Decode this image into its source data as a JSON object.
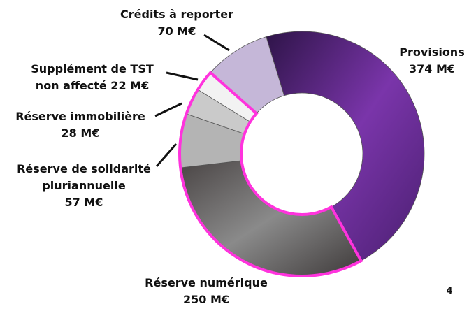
{
  "chart_data": {
    "type": "pie",
    "style": "donut",
    "unit": "M€",
    "slices": [
      {
        "name": "Provisions",
        "value": 374,
        "label_lines": [
          "Provisions",
          "374 M€"
        ],
        "color": "#6b2d9e"
      },
      {
        "name": "Réserve numérique",
        "value": 250,
        "label_lines": [
          "Réserve numérique",
          "250 M€"
        ],
        "color": "#7c7c7c"
      },
      {
        "name": "Réserve de solidarité pluriannuelle",
        "value": 57,
        "label_lines": [
          "Réserve de solidarité",
          "pluriannuelle",
          "57 M€"
        ],
        "color": "#b4b4b4"
      },
      {
        "name": "Réserve immobilière",
        "value": 28,
        "label_lines": [
          "Réserve immobilière",
          "28 M€"
        ],
        "color": "#cacaca"
      },
      {
        "name": "Supplément de TST non affecté",
        "value": 22,
        "label_lines": [
          "Supplément de TST",
          "non affecté 22 M€"
        ],
        "color": "#f2f2f2"
      },
      {
        "name": "Crédits à reporter",
        "value": 70,
        "label_lines": [
          "Crédits à reporter",
          "70 M€"
        ],
        "color": "#c5b7d8"
      }
    ],
    "highlight_color": "#ff33dd",
    "highlighted_slices": [
      "Réserve numérique",
      "Réserve de solidarité pluriannuelle",
      "Réserve immobilière",
      "Supplément de TST non affecté"
    ]
  },
  "page_number": "4"
}
